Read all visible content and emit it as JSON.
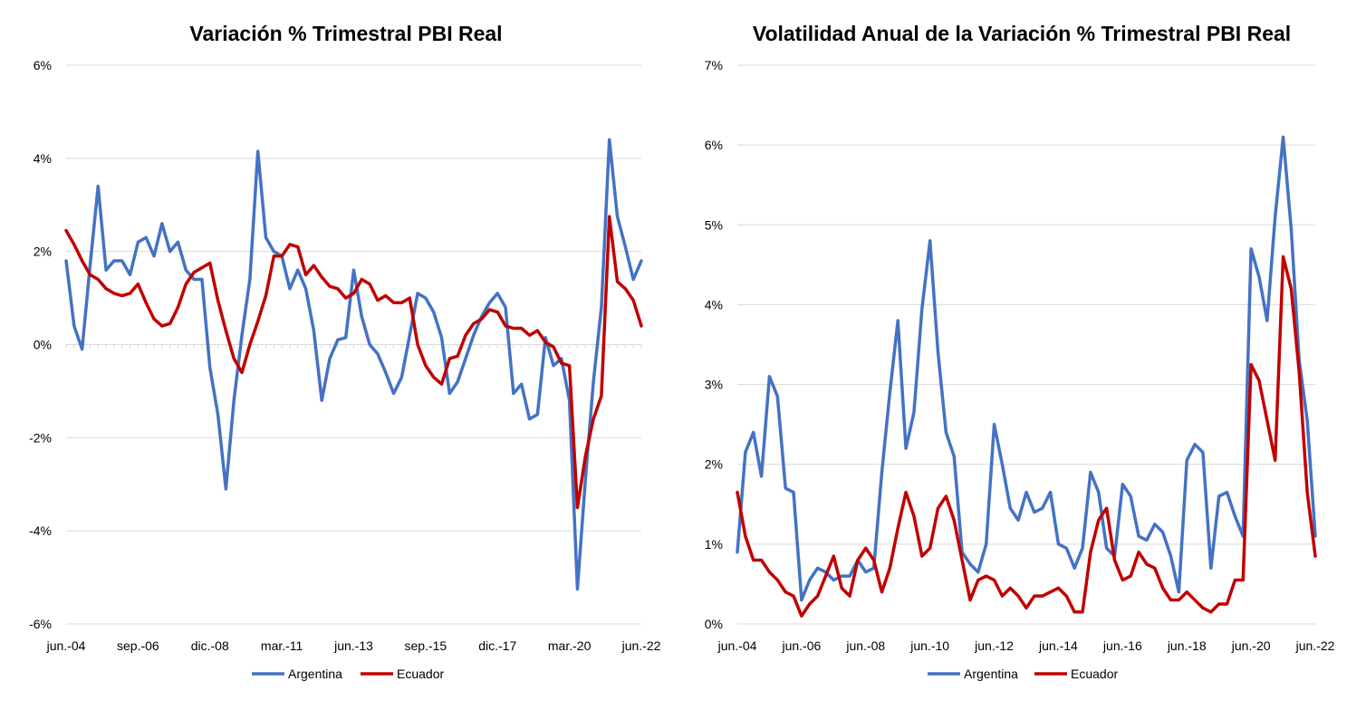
{
  "colors": {
    "argentina": "#4472C4",
    "ecuador": "#C00000",
    "grid": "#D9D9D9",
    "zero_line": "#D9D9D9"
  },
  "chart_data": [
    {
      "type": "line",
      "title": "Variación % Trimestral PBI Real",
      "xlabel": "",
      "ylabel": "",
      "ylim": [
        -6,
        6
      ],
      "yticks": [
        -6,
        -4,
        -2,
        0,
        2,
        4,
        6
      ],
      "ytick_labels": [
        "-6%",
        "-4%",
        "-2%",
        "0%",
        "2%",
        "4%",
        "6%"
      ],
      "x_start": "jun.-04",
      "x_end": "jun.-22",
      "n_quarters": 73,
      "xtick_index": [
        0,
        9,
        18,
        27,
        36,
        45,
        54,
        63,
        72
      ],
      "xtick_labels": [
        "jun.-04",
        "sep.-06",
        "dic.-08",
        "mar.-11",
        "jun.-13",
        "sep.-15",
        "dic.-17",
        "mar.-20",
        "jun.-22"
      ],
      "grid": true,
      "legend": "bottom",
      "series": [
        {
          "name": "Argentina",
          "color": "#4472C4",
          "values": [
            1.8,
            0.4,
            -0.1,
            1.7,
            3.4,
            1.6,
            1.8,
            1.8,
            1.5,
            2.2,
            2.3,
            1.9,
            2.6,
            2.0,
            2.2,
            1.6,
            1.4,
            1.4,
            -0.5,
            -1.5,
            -3.1,
            -1.2,
            0.2,
            1.4,
            4.15,
            2.3,
            2.0,
            1.9,
            1.2,
            1.6,
            1.2,
            0.3,
            -1.2,
            -0.3,
            0.1,
            0.15,
            1.6,
            0.6,
            0.0,
            -0.2,
            -0.6,
            -1.05,
            -0.7,
            0.2,
            1.1,
            1.0,
            0.7,
            0.15,
            -1.05,
            -0.8,
            -0.3,
            0.2,
            0.6,
            0.9,
            1.1,
            0.8,
            -1.05,
            -0.85,
            -1.6,
            -1.5,
            0.15,
            -0.45,
            -0.3,
            -1.2,
            -5.25,
            -2.9,
            -0.8,
            0.8,
            4.4,
            2.75,
            2.1,
            1.4,
            1.8
          ]
        },
        {
          "name": "Ecuador",
          "color": "#C00000",
          "values": [
            2.45,
            2.15,
            1.8,
            1.5,
            1.4,
            1.2,
            1.1,
            1.05,
            1.1,
            1.3,
            0.9,
            0.55,
            0.4,
            0.45,
            0.8,
            1.3,
            1.55,
            1.65,
            1.75,
            0.95,
            0.3,
            -0.3,
            -0.6,
            0.0,
            0.5,
            1.05,
            1.9,
            1.9,
            2.15,
            2.1,
            1.5,
            1.7,
            1.45,
            1.25,
            1.2,
            1.0,
            1.1,
            1.4,
            1.3,
            0.95,
            1.05,
            0.9,
            0.9,
            1.0,
            0.0,
            -0.45,
            -0.7,
            -0.85,
            -0.3,
            -0.25,
            0.2,
            0.45,
            0.55,
            0.75,
            0.7,
            0.4,
            0.35,
            0.35,
            0.2,
            0.3,
            0.05,
            -0.05,
            -0.4,
            -0.45,
            -3.5,
            -2.4,
            -1.6,
            -1.1,
            2.75,
            1.35,
            1.2,
            0.95,
            0.4
          ]
        }
      ]
    },
    {
      "type": "line",
      "title": "Volatilidad Anual de la Variación % Trimestral PBI Real",
      "xlabel": "",
      "ylabel": "",
      "ylim": [
        0,
        7
      ],
      "yticks": [
        0,
        1,
        2,
        3,
        4,
        5,
        6,
        7
      ],
      "ytick_labels": [
        "0%",
        "1%",
        "2%",
        "3%",
        "4%",
        "5%",
        "6%",
        "7%"
      ],
      "x_start": "jun.-04",
      "x_end": "jun.-22",
      "n_quarters": 73,
      "xtick_index": [
        0,
        8,
        16,
        24,
        32,
        40,
        48,
        56,
        64,
        72
      ],
      "xtick_labels": [
        "jun.-04",
        "jun.-06",
        "jun.-08",
        "jun.-10",
        "jun.-12",
        "jun.-14",
        "jun.-16",
        "jun.-18",
        "jun.-20",
        "jun.-22"
      ],
      "grid": true,
      "legend": "bottom",
      "series": [
        {
          "name": "Argentina",
          "color": "#4472C4",
          "values": [
            0.9,
            2.15,
            2.4,
            1.85,
            3.1,
            2.85,
            1.7,
            1.65,
            0.3,
            0.55,
            0.7,
            0.65,
            0.55,
            0.6,
            0.6,
            0.8,
            0.65,
            0.7,
            1.9,
            2.9,
            3.8,
            2.2,
            2.65,
            3.95,
            4.8,
            3.4,
            2.4,
            2.1,
            0.9,
            0.75,
            0.65,
            1.0,
            2.5,
            2.0,
            1.45,
            1.3,
            1.65,
            1.4,
            1.45,
            1.65,
            1.0,
            0.95,
            0.7,
            0.95,
            1.9,
            1.65,
            0.95,
            0.85,
            1.75,
            1.6,
            1.1,
            1.05,
            1.25,
            1.15,
            0.85,
            0.4,
            2.05,
            2.25,
            2.15,
            0.7,
            1.6,
            1.65,
            1.35,
            1.1,
            4.7,
            4.35,
            3.8,
            5.1,
            6.1,
            4.95,
            3.3,
            2.55,
            1.1
          ]
        },
        {
          "name": "Ecuador",
          "color": "#C00000",
          "values": [
            1.65,
            1.1,
            0.8,
            0.8,
            0.65,
            0.55,
            0.4,
            0.35,
            0.1,
            0.25,
            0.35,
            0.6,
            0.85,
            0.45,
            0.35,
            0.8,
            0.95,
            0.8,
            0.4,
            0.7,
            1.2,
            1.65,
            1.35,
            0.85,
            0.95,
            1.45,
            1.6,
            1.3,
            0.8,
            0.3,
            0.55,
            0.6,
            0.55,
            0.35,
            0.45,
            0.35,
            0.2,
            0.35,
            0.35,
            0.4,
            0.45,
            0.35,
            0.15,
            0.15,
            0.9,
            1.3,
            1.45,
            0.8,
            0.55,
            0.6,
            0.9,
            0.75,
            0.7,
            0.45,
            0.3,
            0.3,
            0.4,
            0.3,
            0.2,
            0.15,
            0.25,
            0.25,
            0.55,
            0.55,
            3.25,
            3.05,
            2.55,
            2.05,
            4.6,
            4.2,
            3.15,
            1.65,
            0.85
          ]
        }
      ]
    }
  ]
}
